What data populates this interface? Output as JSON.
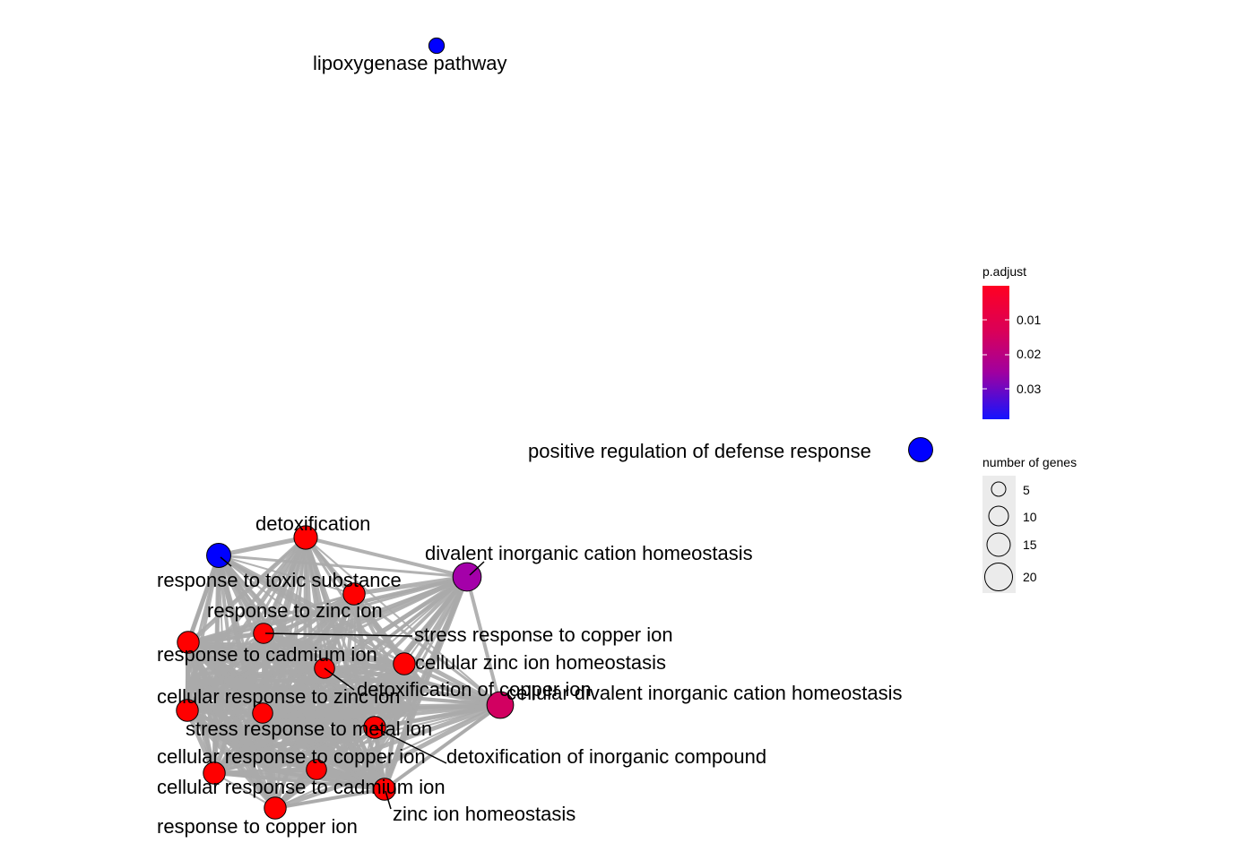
{
  "network": {
    "nodes": [
      {
        "id": "lipox",
        "label": "lipoxygenase pathway",
        "genes": 2,
        "padj": 0.037
      },
      {
        "id": "posreg",
        "label": "positive regulation of defense response",
        "genes": 11,
        "padj": 0.037
      },
      {
        "id": "detox",
        "label": "detoxification",
        "genes": 10,
        "padj": 0.004
      },
      {
        "id": "toxic",
        "label": "response to toxic substance",
        "genes": 11,
        "padj": 0.037
      },
      {
        "id": "divalent",
        "label": "divalent inorganic cation homeostasis",
        "genes": 18,
        "padj": 0.022
      },
      {
        "id": "zincion",
        "label": "response to zinc ion",
        "genes": 8,
        "padj": 0.004
      },
      {
        "id": "cadmium",
        "label": "response to cadmium ion",
        "genes": 8,
        "padj": 0.004
      },
      {
        "id": "stresscu",
        "label": "stress response to copper ion",
        "genes": 6,
        "padj": 0.004
      },
      {
        "id": "czinc",
        "label": "cellular zinc ion homeostasis",
        "genes": 8,
        "padj": 0.004
      },
      {
        "id": "detoxcu",
        "label": "detoxification of copper ion",
        "genes": 6,
        "padj": 0.004
      },
      {
        "id": "cdivalent",
        "label": "cellular divalent inorganic cation homeostasis",
        "genes": 15,
        "padj": 0.014
      },
      {
        "id": "cresp_zinc",
        "label": "cellular response to zinc ion",
        "genes": 8,
        "padj": 0.004
      },
      {
        "id": "stressmetal",
        "label": "stress response to metal ion",
        "genes": 6,
        "padj": 0.004
      },
      {
        "id": "creszinc2",
        "label": "cellular response to zinc ion",
        "genes": 8,
        "padj": 0.004
      },
      {
        "id": "cresp_cu",
        "label": "cellular response to copper ion",
        "genes": 8,
        "padj": 0.004
      },
      {
        "id": "detoxinorg",
        "label": "detoxification of inorganic compound",
        "genes": 6,
        "padj": 0.004
      },
      {
        "id": "cresp_cd",
        "label": "cellular response to cadmium ion",
        "genes": 8,
        "padj": 0.004
      },
      {
        "id": "cd_b",
        "label": "cellular response to cadmium ion",
        "genes": 8,
        "padj": 0.004
      },
      {
        "id": "zinchomeo",
        "label": "zinc ion homeostasis",
        "genes": 8,
        "padj": 0.004
      },
      {
        "id": "cu",
        "label": "response to copper ion",
        "genes": 8,
        "padj": 0.004
      }
    ]
  },
  "legend": {
    "color": {
      "title": "p.adjust",
      "ticks": [
        "0.01",
        "0.02",
        "0.03"
      ],
      "high_color": "#ff0000",
      "low_color": "#0000ff"
    },
    "size": {
      "title": "number of genes",
      "ticks": [
        "5",
        "10",
        "15",
        "20"
      ]
    }
  },
  "colors": {
    "edge": "#aaaaaa",
    "node_stroke": "#000000",
    "legend_key_bg": "#ebebeb"
  }
}
